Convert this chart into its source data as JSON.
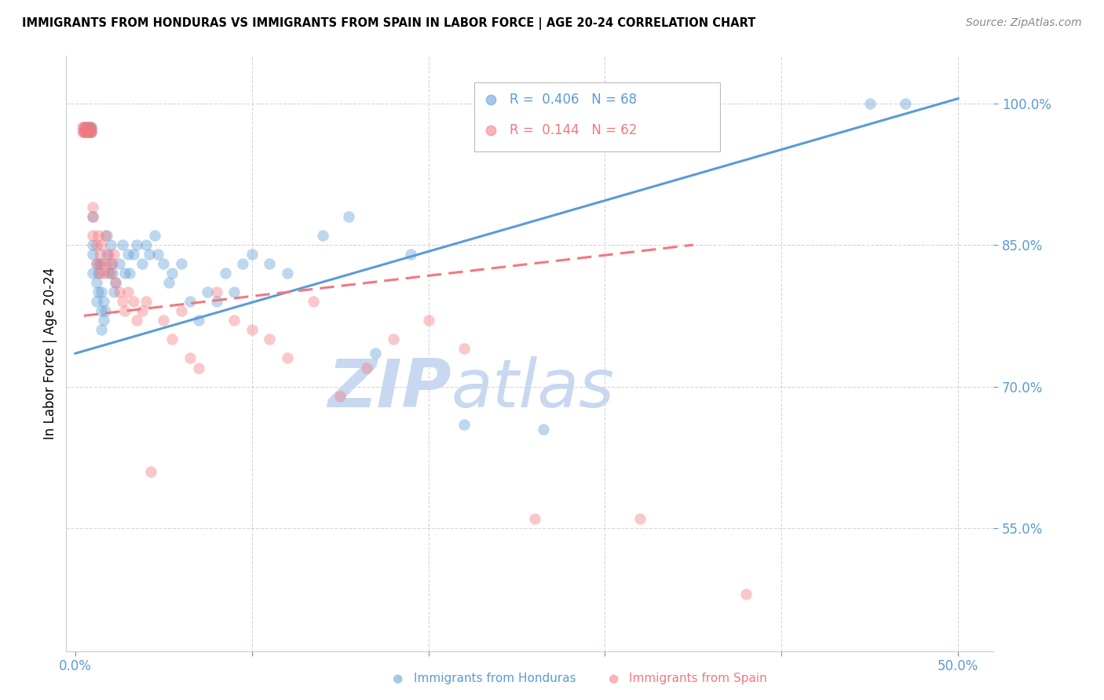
{
  "title": "IMMIGRANTS FROM HONDURAS VS IMMIGRANTS FROM SPAIN IN LABOR FORCE | AGE 20-24 CORRELATION CHART",
  "source": "Source: ZipAtlas.com",
  "ylabel": "In Labor Force | Age 20-24",
  "xlim": [
    -0.005,
    0.52
  ],
  "ylim": [
    0.42,
    1.05
  ],
  "yticks": [
    0.55,
    0.7,
    0.85,
    1.0
  ],
  "ytick_labels": [
    "55.0%",
    "70.0%",
    "85.0%",
    "100.0%"
  ],
  "xticks": [
    0.0,
    0.1,
    0.2,
    0.3,
    0.4,
    0.5
  ],
  "xtick_labels": [
    "0.0%",
    "",
    "",
    "",
    "",
    "50.0%"
  ],
  "legend_label_blue": "Immigrants from Honduras",
  "legend_label_pink": "Immigrants from Spain",
  "blue_color": "#5b9bd5",
  "pink_color": "#f4777f",
  "background_color": "#ffffff",
  "watermark_zip": "ZIP",
  "watermark_atlas": "atlas",
  "watermark_color": "#c8d8f0",
  "blue_R": 0.406,
  "blue_N": 68,
  "pink_R": 0.144,
  "pink_N": 62,
  "blue_line_x0": 0.0,
  "blue_line_y0": 0.735,
  "blue_line_x1": 0.5,
  "blue_line_y1": 1.005,
  "pink_line_x0": 0.005,
  "pink_line_y0": 0.775,
  "pink_line_x1": 0.35,
  "pink_line_y1": 0.85,
  "blue_scatter_x": [
    0.005,
    0.005,
    0.007,
    0.007,
    0.008,
    0.008,
    0.008,
    0.009,
    0.009,
    0.009,
    0.01,
    0.01,
    0.01,
    0.01,
    0.012,
    0.012,
    0.012,
    0.013,
    0.013,
    0.014,
    0.015,
    0.015,
    0.015,
    0.016,
    0.016,
    0.017,
    0.018,
    0.018,
    0.019,
    0.02,
    0.02,
    0.021,
    0.022,
    0.023,
    0.025,
    0.027,
    0.028,
    0.03,
    0.031,
    0.033,
    0.035,
    0.038,
    0.04,
    0.042,
    0.045,
    0.047,
    0.05,
    0.053,
    0.055,
    0.06,
    0.065,
    0.07,
    0.075,
    0.08,
    0.085,
    0.09,
    0.095,
    0.1,
    0.11,
    0.12,
    0.14,
    0.155,
    0.17,
    0.19,
    0.22,
    0.265,
    0.45,
    0.47
  ],
  "blue_scatter_y": [
    0.97,
    0.975,
    0.97,
    0.975,
    0.97,
    0.975,
    0.973,
    0.97,
    0.975,
    0.972,
    0.88,
    0.85,
    0.84,
    0.82,
    0.83,
    0.81,
    0.79,
    0.82,
    0.8,
    0.83,
    0.8,
    0.78,
    0.76,
    0.79,
    0.77,
    0.78,
    0.86,
    0.84,
    0.82,
    0.85,
    0.83,
    0.82,
    0.8,
    0.81,
    0.83,
    0.85,
    0.82,
    0.84,
    0.82,
    0.84,
    0.85,
    0.83,
    0.85,
    0.84,
    0.86,
    0.84,
    0.83,
    0.81,
    0.82,
    0.83,
    0.79,
    0.77,
    0.8,
    0.79,
    0.82,
    0.8,
    0.83,
    0.84,
    0.83,
    0.82,
    0.86,
    0.88,
    0.735,
    0.84,
    0.66,
    0.655,
    1.0,
    1.0
  ],
  "pink_scatter_x": [
    0.004,
    0.004,
    0.005,
    0.005,
    0.005,
    0.006,
    0.006,
    0.006,
    0.007,
    0.007,
    0.007,
    0.008,
    0.008,
    0.009,
    0.009,
    0.009,
    0.01,
    0.01,
    0.01,
    0.012,
    0.012,
    0.013,
    0.014,
    0.014,
    0.015,
    0.015,
    0.016,
    0.017,
    0.018,
    0.019,
    0.02,
    0.021,
    0.022,
    0.023,
    0.025,
    0.027,
    0.028,
    0.03,
    0.033,
    0.035,
    0.038,
    0.04,
    0.043,
    0.05,
    0.055,
    0.06,
    0.065,
    0.07,
    0.08,
    0.09,
    0.1,
    0.11,
    0.12,
    0.135,
    0.15,
    0.165,
    0.18,
    0.2,
    0.22,
    0.26,
    0.32,
    0.38
  ],
  "pink_scatter_y": [
    0.97,
    0.975,
    0.97,
    0.975,
    0.97,
    0.97,
    0.975,
    0.972,
    0.97,
    0.975,
    0.97,
    0.97,
    0.975,
    0.97,
    0.975,
    0.97,
    0.88,
    0.86,
    0.89,
    0.85,
    0.83,
    0.86,
    0.84,
    0.82,
    0.85,
    0.83,
    0.82,
    0.86,
    0.83,
    0.84,
    0.82,
    0.83,
    0.84,
    0.81,
    0.8,
    0.79,
    0.78,
    0.8,
    0.79,
    0.77,
    0.78,
    0.79,
    0.61,
    0.77,
    0.75,
    0.78,
    0.73,
    0.72,
    0.8,
    0.77,
    0.76,
    0.75,
    0.73,
    0.79,
    0.69,
    0.72,
    0.75,
    0.77,
    0.74,
    0.56,
    0.56,
    0.48
  ]
}
